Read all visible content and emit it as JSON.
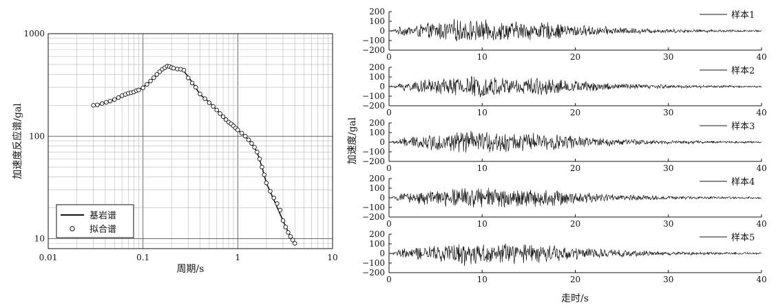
{
  "chart_data": [
    {
      "type": "line",
      "xlabel": "周期/s",
      "ylabel": "加速度反应谱/gal",
      "xscale": "log",
      "yscale": "log",
      "xlim": [
        0.01,
        10
      ],
      "ylim": [
        8,
        1000
      ],
      "x_tick_labels": [
        "0.01",
        "0.1",
        "1",
        "10"
      ],
      "y_tick_labels": [
        "10",
        "100",
        "1000"
      ],
      "grid": true,
      "legend": {
        "placement": "bottom-left",
        "entries": [
          "基岩谱",
          "拟合谱"
        ]
      },
      "series": [
        {
          "name": "基岩谱",
          "style": "line",
          "x": [
            0.03,
            0.035,
            0.04,
            0.05,
            0.06,
            0.07,
            0.08,
            0.09,
            0.1,
            0.12,
            0.14,
            0.16,
            0.18,
            0.2,
            0.23,
            0.26,
            0.3,
            0.35,
            0.4,
            0.5,
            0.6,
            0.7,
            0.8,
            0.9,
            1.0,
            1.2,
            1.4,
            1.6,
            1.8,
            2.0,
            2.5,
            3.0,
            3.5,
            4.0
          ],
          "y": [
            200,
            205,
            212,
            225,
            245,
            260,
            270,
            285,
            300,
            345,
            400,
            450,
            480,
            470,
            455,
            450,
            380,
            310,
            255,
            215,
            180,
            155,
            137,
            126,
            115,
            100,
            85,
            70,
            50,
            35,
            22,
            15,
            11,
            9
          ]
        },
        {
          "name": "拟合谱",
          "style": "markers",
          "x": [
            0.03,
            0.033,
            0.037,
            0.041,
            0.045,
            0.05,
            0.055,
            0.06,
            0.065,
            0.07,
            0.075,
            0.08,
            0.085,
            0.09,
            0.1,
            0.11,
            0.12,
            0.13,
            0.14,
            0.15,
            0.16,
            0.17,
            0.18,
            0.19,
            0.2,
            0.21,
            0.23,
            0.25,
            0.27,
            0.3,
            0.33,
            0.36,
            0.4,
            0.45,
            0.5,
            0.55,
            0.6,
            0.65,
            0.7,
            0.75,
            0.8,
            0.85,
            0.9,
            0.95,
            1.0,
            1.1,
            1.2,
            1.3,
            1.4,
            1.5,
            1.6,
            1.7,
            1.8,
            1.9,
            2.0,
            2.2,
            2.4,
            2.6,
            2.8,
            3.0,
            3.2,
            3.4,
            3.6,
            3.8,
            4.0
          ],
          "y": [
            200,
            202,
            208,
            214,
            220,
            228,
            238,
            248,
            255,
            262,
            266,
            270,
            278,
            282,
            296,
            320,
            345,
            372,
            400,
            425,
            450,
            465,
            482,
            478,
            468,
            460,
            452,
            450,
            440,
            370,
            330,
            300,
            258,
            232,
            212,
            195,
            180,
            166,
            155,
            145,
            137,
            132,
            126,
            120,
            115,
            107,
            100,
            92,
            85,
            78,
            70,
            60,
            50,
            42,
            35,
            29,
            25,
            22,
            19,
            15,
            13,
            11.5,
            10.5,
            9.7,
            9
          ]
        }
      ]
    },
    {
      "type": "line",
      "name": "样本1",
      "xlim": [
        0,
        40
      ],
      "ylim": [
        -200,
        200
      ],
      "y_tick_labels": [
        "200",
        "100",
        "0",
        "−100",
        "−200"
      ],
      "x_tick_labels": [
        "0",
        "10",
        "20",
        "30",
        "40"
      ],
      "series": [
        {
          "name": "样本1",
          "envelope": {
            "t_peak": 7.0,
            "amp_peak": 130,
            "t_end": 40
          },
          "sample_interval": 0.05
        }
      ]
    },
    {
      "type": "line",
      "name": "样本2",
      "xlim": [
        0,
        40
      ],
      "ylim": [
        -200,
        200
      ],
      "y_tick_labels": [
        "200",
        "100",
        "0",
        "−100",
        "−200"
      ],
      "x_tick_labels": [
        "0",
        "10",
        "20",
        "30",
        "40"
      ],
      "series": [
        {
          "name": "样本2",
          "envelope": {
            "t_peak": 8.0,
            "amp_peak": 125,
            "t_end": 40
          },
          "sample_interval": 0.05
        }
      ]
    },
    {
      "type": "line",
      "name": "样本3",
      "xlim": [
        0,
        40
      ],
      "ylim": [
        -200,
        200
      ],
      "y_tick_labels": [
        "200",
        "100",
        "0",
        "−100",
        "−200"
      ],
      "x_tick_labels": [
        "0",
        "10",
        "20",
        "30",
        "40"
      ],
      "series": [
        {
          "name": "样本3",
          "envelope": {
            "t_peak": 8.0,
            "amp_peak": 130,
            "t_end": 40
          },
          "sample_interval": 0.05
        }
      ]
    },
    {
      "type": "line",
      "name": "样本4",
      "xlim": [
        0,
        40
      ],
      "ylim": [
        -200,
        200
      ],
      "y_tick_labels": [
        "200",
        "100",
        "0",
        "−100",
        "−200"
      ],
      "x_tick_labels": [
        "0",
        "10",
        "20",
        "30",
        "40"
      ],
      "series": [
        {
          "name": "样本4",
          "envelope": {
            "t_peak": 8.0,
            "amp_peak": 125,
            "t_end": 40
          },
          "sample_interval": 0.05
        }
      ]
    },
    {
      "type": "line",
      "name": "样本5",
      "xlim": [
        0,
        40
      ],
      "ylim": [
        -200,
        200
      ],
      "y_tick_labels": [
        "200",
        "100",
        "0",
        "−100",
        "−200"
      ],
      "x_tick_labels": [
        "0",
        "10",
        "20",
        "30",
        "40"
      ],
      "series": [
        {
          "name": "样本5",
          "envelope": {
            "t_peak": 8.0,
            "amp_peak": 135,
            "t_end": 40
          },
          "sample_interval": 0.05
        }
      ]
    }
  ],
  "right_panel": {
    "ylabel": "加速度/gal",
    "xlabel": "走时/s"
  }
}
